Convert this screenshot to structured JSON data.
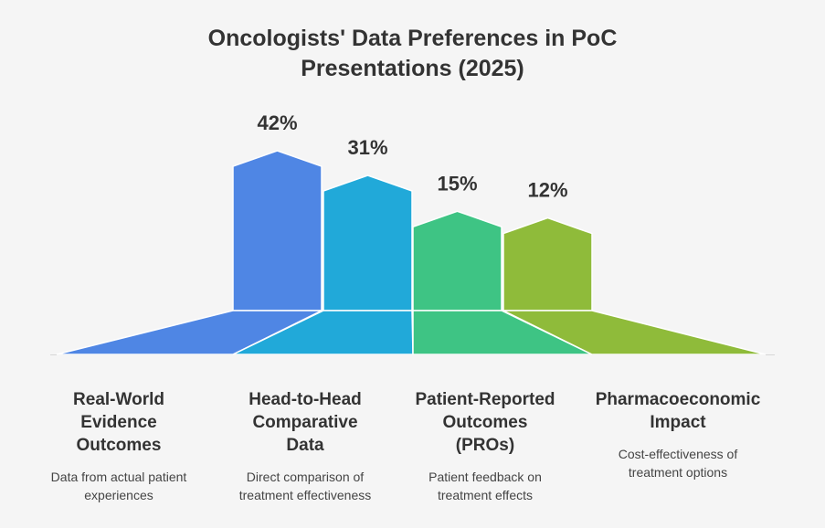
{
  "chart_data": {
    "type": "bar",
    "title": "Oncologists' Data Preferences in PoC Presentations (2025)",
    "title_lines": [
      "Oncologists' Data Preferences in PoC",
      "Presentations (2025)"
    ],
    "unit": "%",
    "categories": [
      {
        "label": "Real-World Evidence Outcomes",
        "label_lines": [
          "Real-World",
          "Evidence",
          "Outcomes"
        ],
        "description": "Data from actual patient experiences",
        "description_lines": [
          "Data from actual patient",
          "experiences"
        ],
        "value": 42,
        "value_label": "42%",
        "color": "#4f86e4"
      },
      {
        "label": "Head-to-Head Comparative Data",
        "label_lines": [
          "Head-to-Head",
          "Comparative",
          "Data"
        ],
        "description": "Direct comparison of treatment effectiveness",
        "description_lines": [
          "Direct comparison of",
          "treatment effectiveness"
        ],
        "value": 31,
        "value_label": "31%",
        "color": "#21a9d9"
      },
      {
        "label": "Patient-Reported Outcomes (PROs)",
        "label_lines": [
          "Patient-Reported",
          "Outcomes",
          "(PROs)"
        ],
        "description": "Patient feedback on treatment effects",
        "description_lines": [
          "Patient feedback on",
          "treatment effects"
        ],
        "value": 15,
        "value_label": "15%",
        "color": "#3ec484"
      },
      {
        "label": "Pharmacoeconomic Impact",
        "label_lines": [
          "Pharmacoeconomic",
          "Impact"
        ],
        "description": "Cost-effectiveness of treatment options",
        "description_lines": [
          "Cost-effectiveness of",
          "treatment options"
        ],
        "value": 12,
        "value_label": "12%",
        "color": "#8fbb3a"
      }
    ]
  }
}
